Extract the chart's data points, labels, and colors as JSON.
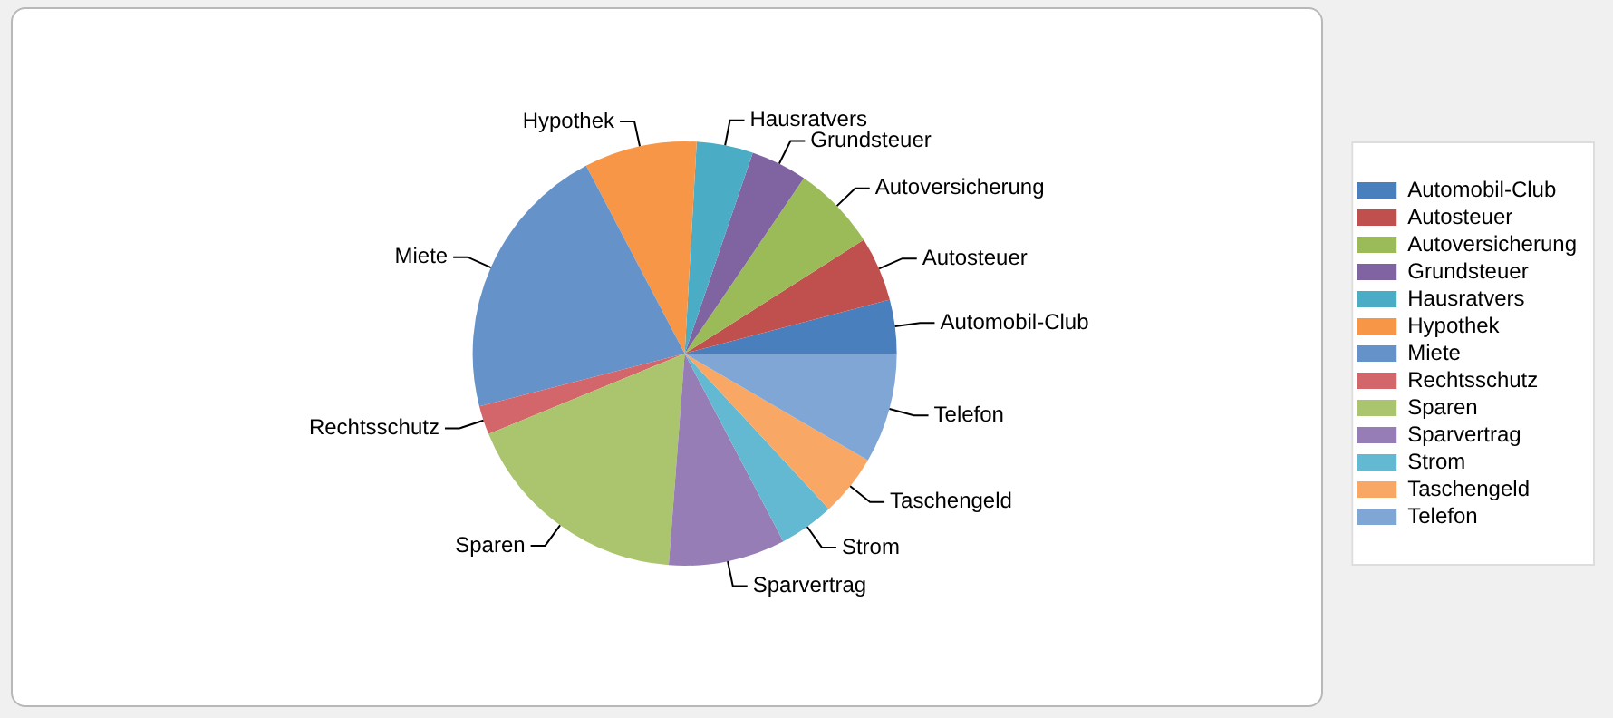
{
  "chart_data": {
    "type": "pie",
    "categories": [
      "Automobil-Club",
      "Autosteuer",
      "Autoversicherung",
      "Grundsteuer",
      "Hausratvers",
      "Hypothek",
      "Miete",
      "Rechtsschutz",
      "Sparen",
      "Sparvertrag",
      "Strom",
      "Taschengeld",
      "Telefon"
    ],
    "values": [
      4.1,
      4.9,
      6.5,
      4.3,
      4.3,
      8.6,
      21.3,
      2.2,
      17.6,
      8.9,
      4.2,
      4.7,
      8.4
    ],
    "colors": [
      "#4a7fbd",
      "#c0504d",
      "#9bbb59",
      "#8064a2",
      "#4bacc6",
      "#f79646",
      "#6592c8",
      "#d3666a",
      "#abc56f",
      "#977db5",
      "#62b9d1",
      "#f8a864",
      "#7fa6d4"
    ],
    "legend": "right"
  }
}
